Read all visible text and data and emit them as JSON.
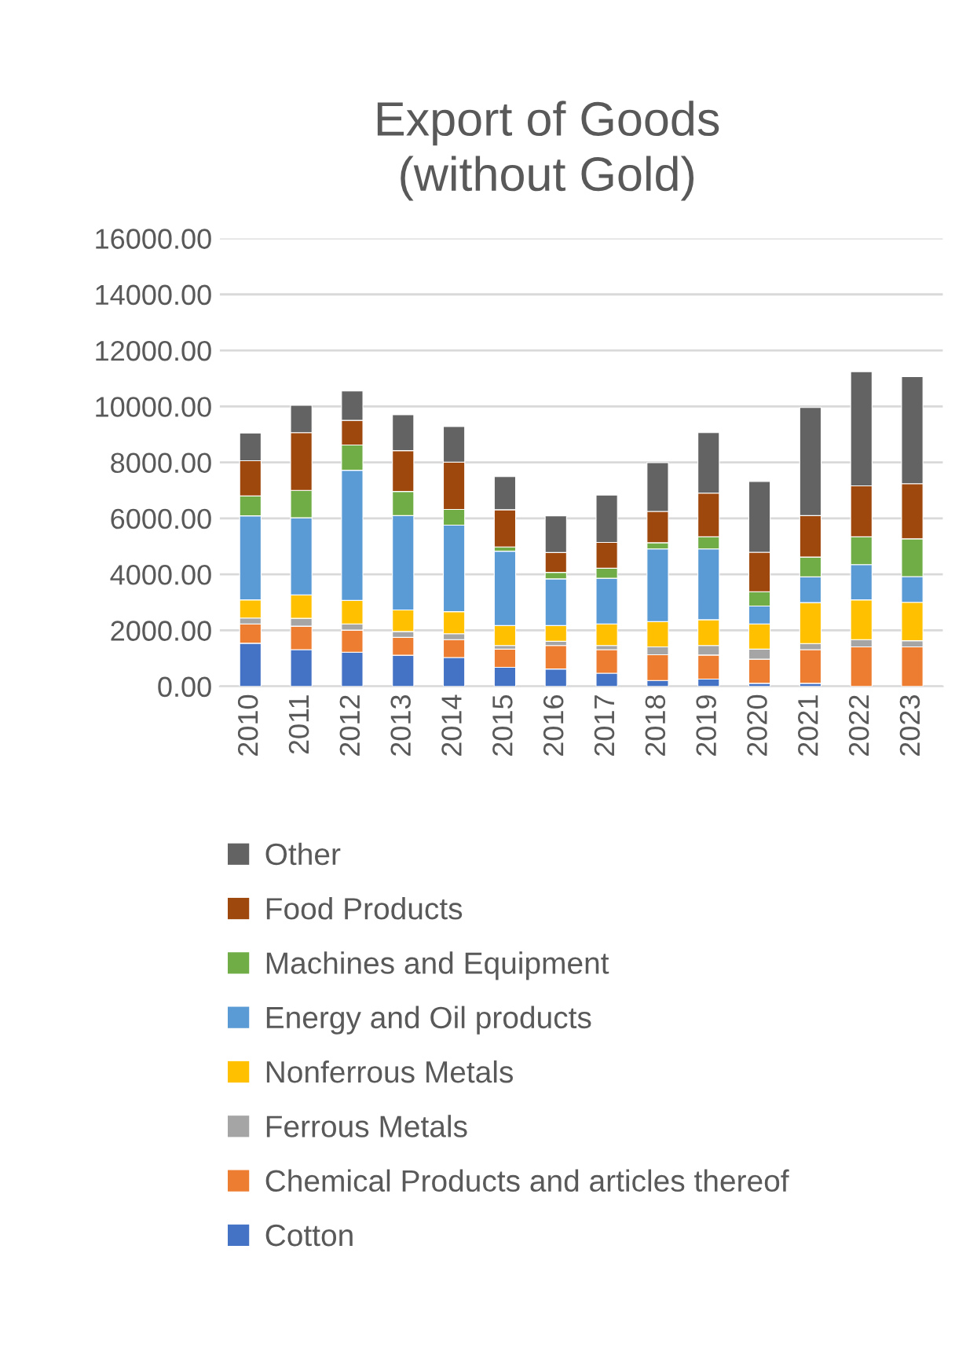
{
  "chart_data": {
    "type": "bar",
    "title": "Export of Goods\n(without Gold)",
    "stacked": true,
    "categories": [
      "2010",
      "2011",
      "2012",
      "2013",
      "2014",
      "2015",
      "2016",
      "2017",
      "2018",
      "2019",
      "2020",
      "2021",
      "2022",
      "2023"
    ],
    "series": [
      {
        "name": "Cotton",
        "color": "#4472c4",
        "values": [
          1540,
          1310,
          1220,
          1110,
          1030,
          680,
          620,
          470,
          210,
          260,
          110,
          110,
          0,
          0
        ]
      },
      {
        "name": "Chemical Products and articles thereof",
        "color": "#ed7d31",
        "values": [
          690,
          840,
          790,
          640,
          640,
          650,
          840,
          840,
          920,
          860,
          860,
          1200,
          1410,
          1410
        ]
      },
      {
        "name": "Ferrous Metals",
        "color": "#a5a5a5",
        "values": [
          210,
          280,
          220,
          210,
          210,
          130,
          150,
          150,
          280,
          340,
          360,
          220,
          260,
          220
        ]
      },
      {
        "name": "Nonferrous Metals",
        "color": "#ffc000",
        "values": [
          650,
          840,
          840,
          770,
          790,
          710,
          560,
          770,
          900,
          920,
          900,
          1460,
          1420,
          1370
        ]
      },
      {
        "name": "Energy and Oil products",
        "color": "#5b9bd5",
        "values": [
          3000,
          2750,
          4650,
          3370,
          3090,
          2660,
          1670,
          1630,
          2600,
          2530,
          640,
          920,
          1260,
          920
        ]
      },
      {
        "name": "Machines and Equipment",
        "color": "#70ad47",
        "values": [
          710,
          980,
          900,
          860,
          560,
          150,
          230,
          360,
          220,
          430,
          510,
          710,
          990,
          1350
        ]
      },
      {
        "name": "Food Products",
        "color": "#9e480e",
        "values": [
          1260,
          2060,
          880,
          1460,
          1690,
          1330,
          710,
          920,
          1120,
          1560,
          1410,
          1480,
          1820,
          1970
        ]
      },
      {
        "name": "Other",
        "color": "#636363",
        "values": [
          990,
          980,
          1050,
          1280,
          1270,
          1180,
          1310,
          1690,
          1740,
          2160,
          2530,
          3860,
          4080,
          3820
        ]
      }
    ],
    "ylim": [
      0,
      16000
    ],
    "yticks": [
      {
        "value": 0,
        "label": "0.00"
      },
      {
        "value": 2000,
        "label": "2000.00"
      },
      {
        "value": 4000,
        "label": "4000.00"
      },
      {
        "value": 6000,
        "label": "6000.00"
      },
      {
        "value": 8000,
        "label": "8000.00"
      },
      {
        "value": 10000,
        "label": "10000.00"
      },
      {
        "value": 12000,
        "label": "12000.00"
      },
      {
        "value": 14000,
        "label": "14000.00"
      },
      {
        "value": 16000,
        "label": "16000.00"
      }
    ],
    "grid": "y",
    "legend": "bottom"
  }
}
